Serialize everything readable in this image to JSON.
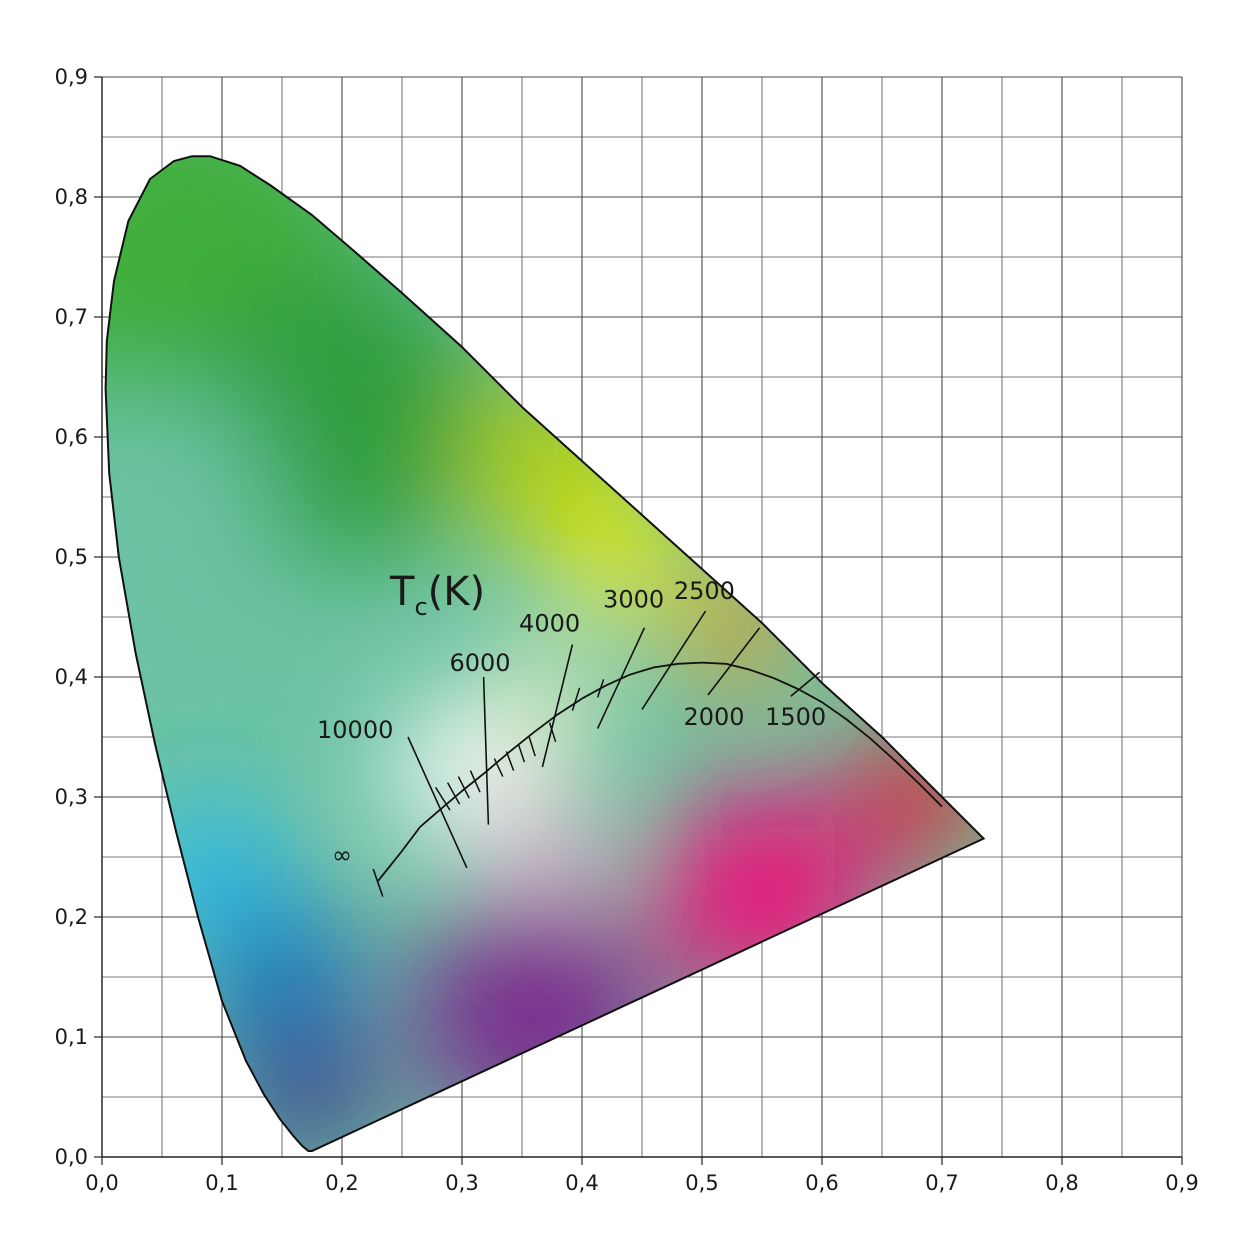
{
  "chart_data": {
    "type": "scatter",
    "title": "",
    "xlabel": "",
    "ylabel": "",
    "xlim": [
      0.0,
      0.9
    ],
    "ylim": [
      0.0,
      0.9
    ],
    "grid": true,
    "x_ticks": [
      "0,0",
      "0,1",
      "0,2",
      "0,3",
      "0,4",
      "0,5",
      "0,6",
      "0,7",
      "0,8",
      "0,9"
    ],
    "y_ticks": [
      "0,0",
      "0,1",
      "0,2",
      "0,3",
      "0,4",
      "0,5",
      "0,6",
      "0,7",
      "0,8",
      "0,9"
    ],
    "annotation": {
      "text": "T",
      "subscript": "c",
      "suffix": "(K)",
      "x": 0.24,
      "y": 0.46
    },
    "spectral_locus": [
      [
        0.175,
        0.005
      ],
      [
        0.172,
        0.005
      ],
      [
        0.167,
        0.009
      ],
      [
        0.159,
        0.018
      ],
      [
        0.148,
        0.032
      ],
      [
        0.135,
        0.052
      ],
      [
        0.12,
        0.08
      ],
      [
        0.1,
        0.13
      ],
      [
        0.08,
        0.2
      ],
      [
        0.062,
        0.27
      ],
      [
        0.044,
        0.345
      ],
      [
        0.028,
        0.42
      ],
      [
        0.014,
        0.5
      ],
      [
        0.006,
        0.57
      ],
      [
        0.003,
        0.64
      ],
      [
        0.004,
        0.68
      ],
      [
        0.01,
        0.73
      ],
      [
        0.022,
        0.78
      ],
      [
        0.04,
        0.815
      ],
      [
        0.06,
        0.83
      ],
      [
        0.075,
        0.834
      ],
      [
        0.09,
        0.834
      ],
      [
        0.115,
        0.826
      ],
      [
        0.14,
        0.81
      ],
      [
        0.175,
        0.785
      ],
      [
        0.21,
        0.755
      ],
      [
        0.25,
        0.72
      ],
      [
        0.3,
        0.675
      ],
      [
        0.35,
        0.625
      ],
      [
        0.4,
        0.58
      ],
      [
        0.45,
        0.535
      ],
      [
        0.5,
        0.49
      ],
      [
        0.55,
        0.445
      ],
      [
        0.6,
        0.395
      ],
      [
        0.65,
        0.35
      ],
      [
        0.7,
        0.3
      ],
      [
        0.7347,
        0.2653
      ]
    ],
    "purple_line": [
      [
        0.7347,
        0.2653
      ],
      [
        0.175,
        0.005
      ]
    ],
    "planckian_locus": [
      [
        0.23,
        0.23
      ],
      [
        0.25,
        0.255
      ],
      [
        0.265,
        0.275
      ],
      [
        0.28,
        0.288
      ],
      [
        0.3,
        0.305
      ],
      [
        0.32,
        0.321
      ],
      [
        0.34,
        0.338
      ],
      [
        0.36,
        0.354
      ],
      [
        0.38,
        0.369
      ],
      [
        0.4,
        0.382
      ],
      [
        0.42,
        0.393
      ],
      [
        0.44,
        0.402
      ],
      [
        0.46,
        0.408
      ],
      [
        0.48,
        0.411
      ],
      [
        0.5,
        0.412
      ],
      [
        0.52,
        0.411
      ],
      [
        0.54,
        0.406
      ],
      [
        0.56,
        0.399
      ],
      [
        0.58,
        0.39
      ],
      [
        0.6,
        0.379
      ],
      [
        0.62,
        0.365
      ],
      [
        0.64,
        0.349
      ],
      [
        0.66,
        0.331
      ],
      [
        0.68,
        0.312
      ],
      [
        0.7,
        0.292
      ]
    ],
    "isotherms": [
      {
        "label": "∞",
        "line": [
          [
            0.226,
            0.24
          ],
          [
            0.234,
            0.217
          ]
        ],
        "label_pos": [
          0.2,
          0.245
        ],
        "label_anchor": "middle"
      },
      {
        "label": "10000",
        "line": [
          [
            0.255,
            0.35
          ],
          [
            0.304,
            0.241
          ]
        ],
        "label_pos": [
          0.211,
          0.349
        ],
        "label_anchor": "middle"
      },
      {
        "label": "6000",
        "line": [
          [
            0.318,
            0.4
          ],
          [
            0.322,
            0.277
          ]
        ],
        "label_pos": [
          0.315,
          0.405
        ],
        "label_anchor": "middle"
      },
      {
        "label": "4000",
        "line": [
          [
            0.392,
            0.427
          ],
          [
            0.367,
            0.325
          ]
        ],
        "label_pos": [
          0.373,
          0.438
        ],
        "label_anchor": "middle"
      },
      {
        "label": "3000",
        "line": [
          [
            0.452,
            0.441
          ],
          [
            0.413,
            0.357
          ]
        ],
        "label_pos": [
          0.443,
          0.458
        ],
        "label_anchor": "middle"
      },
      {
        "label": "2500",
        "line": [
          [
            0.503,
            0.455
          ],
          [
            0.45,
            0.373
          ]
        ],
        "label_pos": [
          0.502,
          0.465
        ],
        "label_anchor": "middle"
      },
      {
        "label": "2000",
        "line": [
          [
            0.548,
            0.441
          ],
          [
            0.505,
            0.385
          ]
        ],
        "label_pos": [
          0.51,
          0.36
        ],
        "label_anchor": "middle"
      },
      {
        "label": "1500",
        "line": [
          [
            0.598,
            0.404
          ],
          [
            0.574,
            0.384
          ]
        ],
        "label_pos": [
          0.578,
          0.36
        ],
        "label_anchor": "middle"
      }
    ],
    "minor_ticks": [
      [
        [
          0.278,
          0.308
        ],
        [
          0.29,
          0.289
        ]
      ],
      [
        [
          0.288,
          0.312
        ],
        [
          0.298,
          0.294
        ]
      ],
      [
        [
          0.297,
          0.317
        ],
        [
          0.306,
          0.299
        ]
      ],
      [
        [
          0.307,
          0.322
        ],
        [
          0.315,
          0.304
        ]
      ],
      [
        [
          0.327,
          0.332
        ],
        [
          0.334,
          0.317
        ]
      ],
      [
        [
          0.337,
          0.338
        ],
        [
          0.343,
          0.322
        ]
      ],
      [
        [
          0.347,
          0.344
        ],
        [
          0.352,
          0.329
        ]
      ],
      [
        [
          0.356,
          0.35
        ],
        [
          0.361,
          0.334
        ]
      ],
      [
        [
          0.373,
          0.362
        ],
        [
          0.378,
          0.346
        ]
      ],
      [
        [
          0.398,
          0.391
        ],
        [
          0.392,
          0.372
        ]
      ],
      [
        [
          0.418,
          0.398
        ],
        [
          0.413,
          0.383
        ]
      ]
    ],
    "gradient_colors": {
      "green": "#3fae3a",
      "deep_green": "#2e9e3c",
      "yellow_green": "#b5d000",
      "yellow": "#fff200",
      "orange": "#f7941d",
      "red": "#e8171c",
      "magenta": "#e6127b",
      "purple": "#7b2a8e",
      "violet": "#3d2585",
      "blue": "#1f6fb8",
      "cyan": "#26b8ef",
      "teal": "#6cc3a3",
      "white": "#ffffff"
    }
  }
}
